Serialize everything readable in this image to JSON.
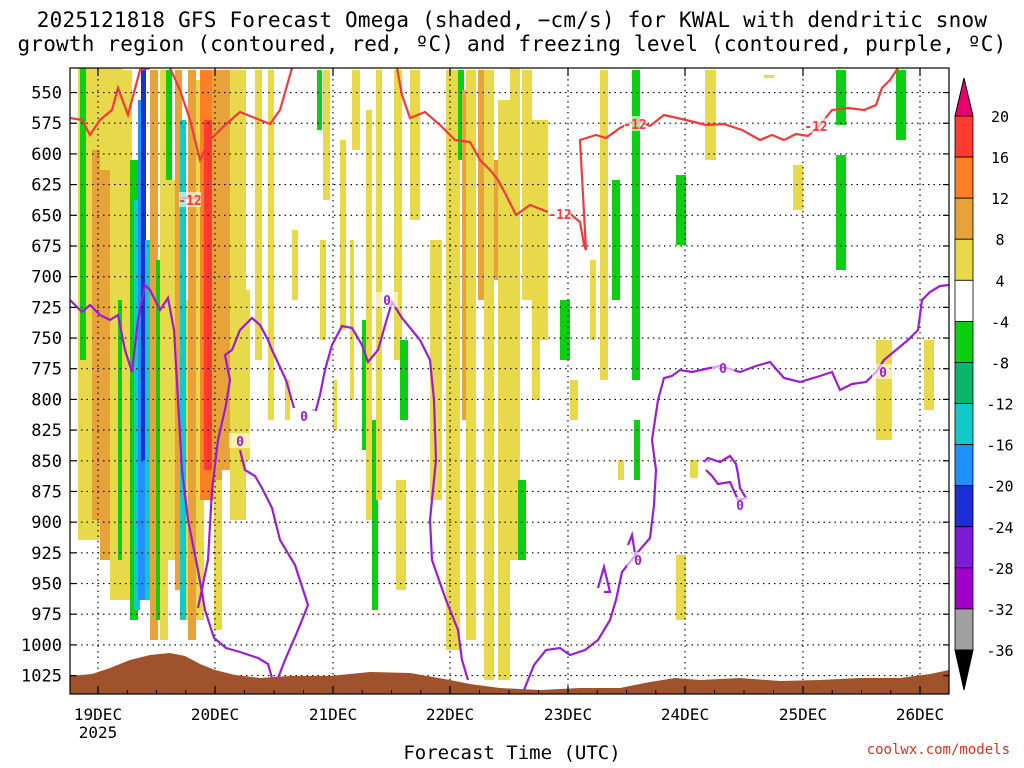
{
  "title_line1": "2025121818 GFS Forecast Omega (shaded, −cm/s) for KWAL with dendritic snow",
  "title_line2": "growth region (contoured, red, ºC) and freezing level (contoured, purple, ºC)",
  "watermark": "coolwx.com/models",
  "chart_data": {
    "type": "heatmap",
    "xlabel": "Forecast Time (UTC)",
    "x_ticks": [
      "19DEC",
      "20DEC",
      "21DEC",
      "22DEC",
      "23DEC",
      "24DEC",
      "25DEC",
      "26DEC"
    ],
    "x_year": "2025",
    "ylabel": "",
    "y_ticks": [
      550,
      575,
      600,
      625,
      650,
      675,
      700,
      725,
      750,
      775,
      800,
      825,
      850,
      875,
      900,
      925,
      950,
      975,
      1000,
      1025
    ],
    "ylim": [
      530,
      1040
    ],
    "y_scale": "reversed",
    "grid": true,
    "colorbar": {
      "labels": [
        20,
        16,
        12,
        8,
        4,
        -4,
        -8,
        -12,
        -16,
        -20,
        -24,
        -28,
        -32,
        -36
      ],
      "colors": [
        "#e8006e",
        "#ff3b30",
        "#ff7f24",
        "#e8a23a",
        "#e8d94a",
        "#ffffff",
        "#0ccf13",
        "#0ab46a",
        "#12c9c9",
        "#1e90ff",
        "#1c2fd6",
        "#7a1cd8",
        "#a000c8",
        "#a0a0a0",
        "#000000"
      ]
    },
    "contour_labels": [
      {
        "text": "-12",
        "color": "#ef3b3b"
      },
      {
        "text": "-12",
        "color": "#ef3b3b"
      },
      {
        "text": "-12",
        "color": "#ef3b3b"
      },
      {
        "text": "-12",
        "color": "#ef3b3b"
      },
      {
        "text": "0",
        "color": "#9b1dd2"
      },
      {
        "text": "0",
        "color": "#9b1dd2"
      },
      {
        "text": "0",
        "color": "#9b1dd2"
      },
      {
        "text": "0",
        "color": "#9b1dd2"
      },
      {
        "text": "0",
        "color": "#9b1dd2"
      },
      {
        "text": "0",
        "color": "#9b1dd2"
      },
      {
        "text": "0",
        "color": "#9b1dd2"
      }
    ]
  }
}
